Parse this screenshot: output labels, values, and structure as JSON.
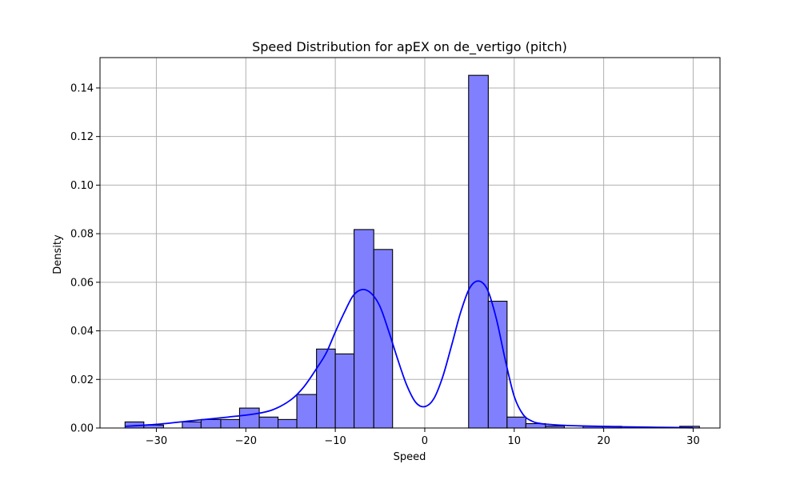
{
  "chart_data": {
    "type": "bar",
    "title": "Speed Distribution for apEX on de_vertigo (pitch)",
    "xlabel": "Speed",
    "ylabel": "Density",
    "xlim": [
      -36.3,
      33.0
    ],
    "ylim": [
      0,
      0.1525
    ],
    "xticks": [
      -30,
      -20,
      -10,
      0,
      10,
      20,
      30
    ],
    "xtick_labels": [
      "−30",
      "−20",
      "−10",
      "0",
      "10",
      "20",
      "30"
    ],
    "yticks": [
      0.0,
      0.02,
      0.04,
      0.06,
      0.08,
      0.1,
      0.12,
      0.14
    ],
    "ytick_labels": [
      "0.00",
      "0.02",
      "0.04",
      "0.06",
      "0.08",
      "0.10",
      "0.12",
      "0.14"
    ],
    "grid": true,
    "series": [
      {
        "kind": "histogram",
        "bins": [
          {
            "x0": -33.5,
            "x1": -31.4,
            "value": 0.0025
          },
          {
            "x0": -31.4,
            "x1": -29.2,
            "value": 0.0012
          },
          {
            "x0": -29.2,
            "x1": -27.1,
            "value": 0.0
          },
          {
            "x0": -27.1,
            "x1": -25.0,
            "value": 0.0025
          },
          {
            "x0": -25.0,
            "x1": -22.8,
            "value": 0.0035
          },
          {
            "x0": -22.8,
            "x1": -20.7,
            "value": 0.0035
          },
          {
            "x0": -20.7,
            "x1": -18.5,
            "value": 0.0082
          },
          {
            "x0": -18.5,
            "x1": -16.4,
            "value": 0.0045
          },
          {
            "x0": -16.4,
            "x1": -14.3,
            "value": 0.0035
          },
          {
            "x0": -14.3,
            "x1": -12.1,
            "value": 0.0138
          },
          {
            "x0": -12.1,
            "x1": -10.0,
            "value": 0.0325
          },
          {
            "x0": -10.0,
            "x1": -7.9,
            "value": 0.0305
          },
          {
            "x0": -7.9,
            "x1": -5.7,
            "value": 0.0817
          },
          {
            "x0": -5.7,
            "x1": -3.6,
            "value": 0.0735
          },
          {
            "x0": 4.9,
            "x1": 7.1,
            "value": 0.1452
          },
          {
            "x0": 7.1,
            "x1": 9.2,
            "value": 0.0522
          },
          {
            "x0": 9.2,
            "x1": 11.3,
            "value": 0.0045
          },
          {
            "x0": 11.3,
            "x1": 13.5,
            "value": 0.0018
          },
          {
            "x0": 13.5,
            "x1": 15.6,
            "value": 0.0008
          },
          {
            "x0": 17.7,
            "x1": 19.9,
            "value": 0.0007
          },
          {
            "x0": 19.9,
            "x1": 22.0,
            "value": 0.0007
          },
          {
            "x0": 28.5,
            "x1": 30.7,
            "value": 0.0007
          }
        ]
      },
      {
        "kind": "kde",
        "points": [
          [
            -33.5,
            0.0007
          ],
          [
            -30,
            0.0015
          ],
          [
            -26,
            0.003
          ],
          [
            -22,
            0.0045
          ],
          [
            -19,
            0.0058
          ],
          [
            -17,
            0.0075
          ],
          [
            -15,
            0.0115
          ],
          [
            -13.5,
            0.017
          ],
          [
            -12,
            0.025
          ],
          [
            -11,
            0.031
          ],
          [
            -10,
            0.0395
          ],
          [
            -9,
            0.0475
          ],
          [
            -8,
            0.0545
          ],
          [
            -7,
            0.057
          ],
          [
            -6,
            0.0555
          ],
          [
            -5,
            0.05
          ],
          [
            -4,
            0.0395
          ],
          [
            -3,
            0.028
          ],
          [
            -2,
            0.0175
          ],
          [
            -1,
            0.0105
          ],
          [
            0,
            0.0088
          ],
          [
            1,
            0.012
          ],
          [
            2,
            0.021
          ],
          [
            3,
            0.034
          ],
          [
            4,
            0.0475
          ],
          [
            5,
            0.0575
          ],
          [
            6,
            0.0605
          ],
          [
            7,
            0.057
          ],
          [
            8,
            0.045
          ],
          [
            9,
            0.028
          ],
          [
            10,
            0.013
          ],
          [
            11,
            0.0055
          ],
          [
            12,
            0.0028
          ],
          [
            13,
            0.0018
          ],
          [
            15,
            0.0012
          ],
          [
            18,
            0.0008
          ],
          [
            22,
            0.0005
          ],
          [
            26,
            0.0003
          ],
          [
            30,
            0.0001
          ]
        ]
      }
    ]
  },
  "colors": {
    "bar_fill": "#8080ff",
    "bar_edge": "#000000",
    "kde_line": "#0000ff",
    "grid": "#b0b0b0",
    "axis": "#000000"
  }
}
